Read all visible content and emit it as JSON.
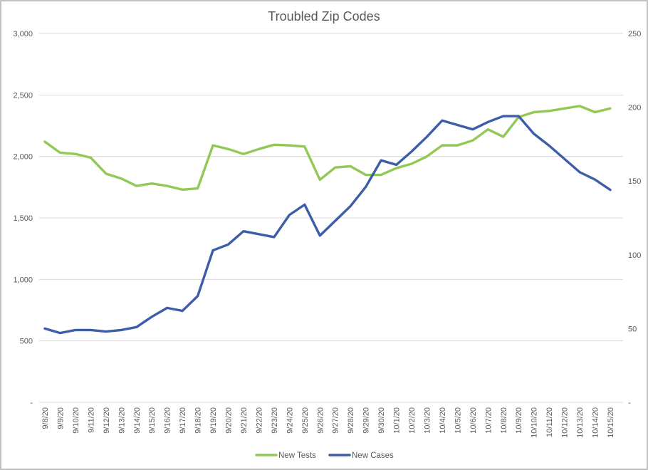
{
  "window": {
    "background": "#ffffff",
    "border_color": "#c2c2c2"
  },
  "chart_data": {
    "type": "line",
    "title": "Troubled Zip Codes",
    "text_color": "#595959",
    "gridline_color": "#d9d9d9",
    "gridlines": true,
    "legend_position": "bottom",
    "categories": [
      "9/8/20",
      "9/9/20",
      "9/10/20",
      "9/11/20",
      "9/12/20",
      "9/13/20",
      "9/14/20",
      "9/15/20",
      "9/16/20",
      "9/17/20",
      "9/18/20",
      "9/19/20",
      "9/20/20",
      "9/21/20",
      "9/22/20",
      "9/23/20",
      "9/24/20",
      "9/25/20",
      "9/26/20",
      "9/27/20",
      "9/28/20",
      "9/29/20",
      "9/30/20",
      "10/1/20",
      "10/2/20",
      "10/3/20",
      "10/4/20",
      "10/5/20",
      "10/6/20",
      "10/7/20",
      "10/8/20",
      "10/9/20",
      "10/10/20",
      "10/11/20",
      "10/12/20",
      "10/13/20",
      "10/14/20",
      "10/15/20"
    ],
    "series": [
      {
        "name": "New Tests",
        "axis": "left",
        "color": "#92c956",
        "values": [
          2120,
          2030,
          2020,
          1990,
          1860,
          1820,
          1760,
          1780,
          1760,
          1730,
          1740,
          2090,
          2060,
          2020,
          2060,
          2095,
          2090,
          2080,
          1810,
          1910,
          1920,
          1850,
          1850,
          1905,
          1940,
          2000,
          2090,
          2090,
          2130,
          2220,
          2160,
          2320,
          2360,
          2370,
          2390,
          2410,
          2360,
          2390
        ]
      },
      {
        "name": "New Cases",
        "axis": "right",
        "color": "#3d5da8",
        "values": [
          50,
          47,
          49,
          49,
          48,
          49,
          51,
          58,
          64,
          62,
          72,
          103,
          107,
          116,
          114,
          112,
          127,
          134,
          113,
          123,
          133,
          146,
          164,
          161,
          170,
          180,
          191,
          188,
          185,
          190,
          194,
          194,
          182,
          174,
          165,
          156,
          151,
          144
        ]
      }
    ],
    "left_axis": {
      "min": 0,
      "max": 3000,
      "tick_values": [
        3000,
        2500,
        2000,
        1500,
        1000,
        500,
        0
      ],
      "tick_labels": [
        "3,000",
        "2,500",
        "2,000",
        "1,500",
        "1,000",
        "500",
        "-"
      ]
    },
    "right_axis": {
      "min": 0,
      "max": 250,
      "tick_values": [
        250,
        200,
        150,
        100,
        50,
        0
      ],
      "tick_labels": [
        "250",
        "200",
        "150",
        "100",
        "50",
        "-"
      ]
    }
  }
}
